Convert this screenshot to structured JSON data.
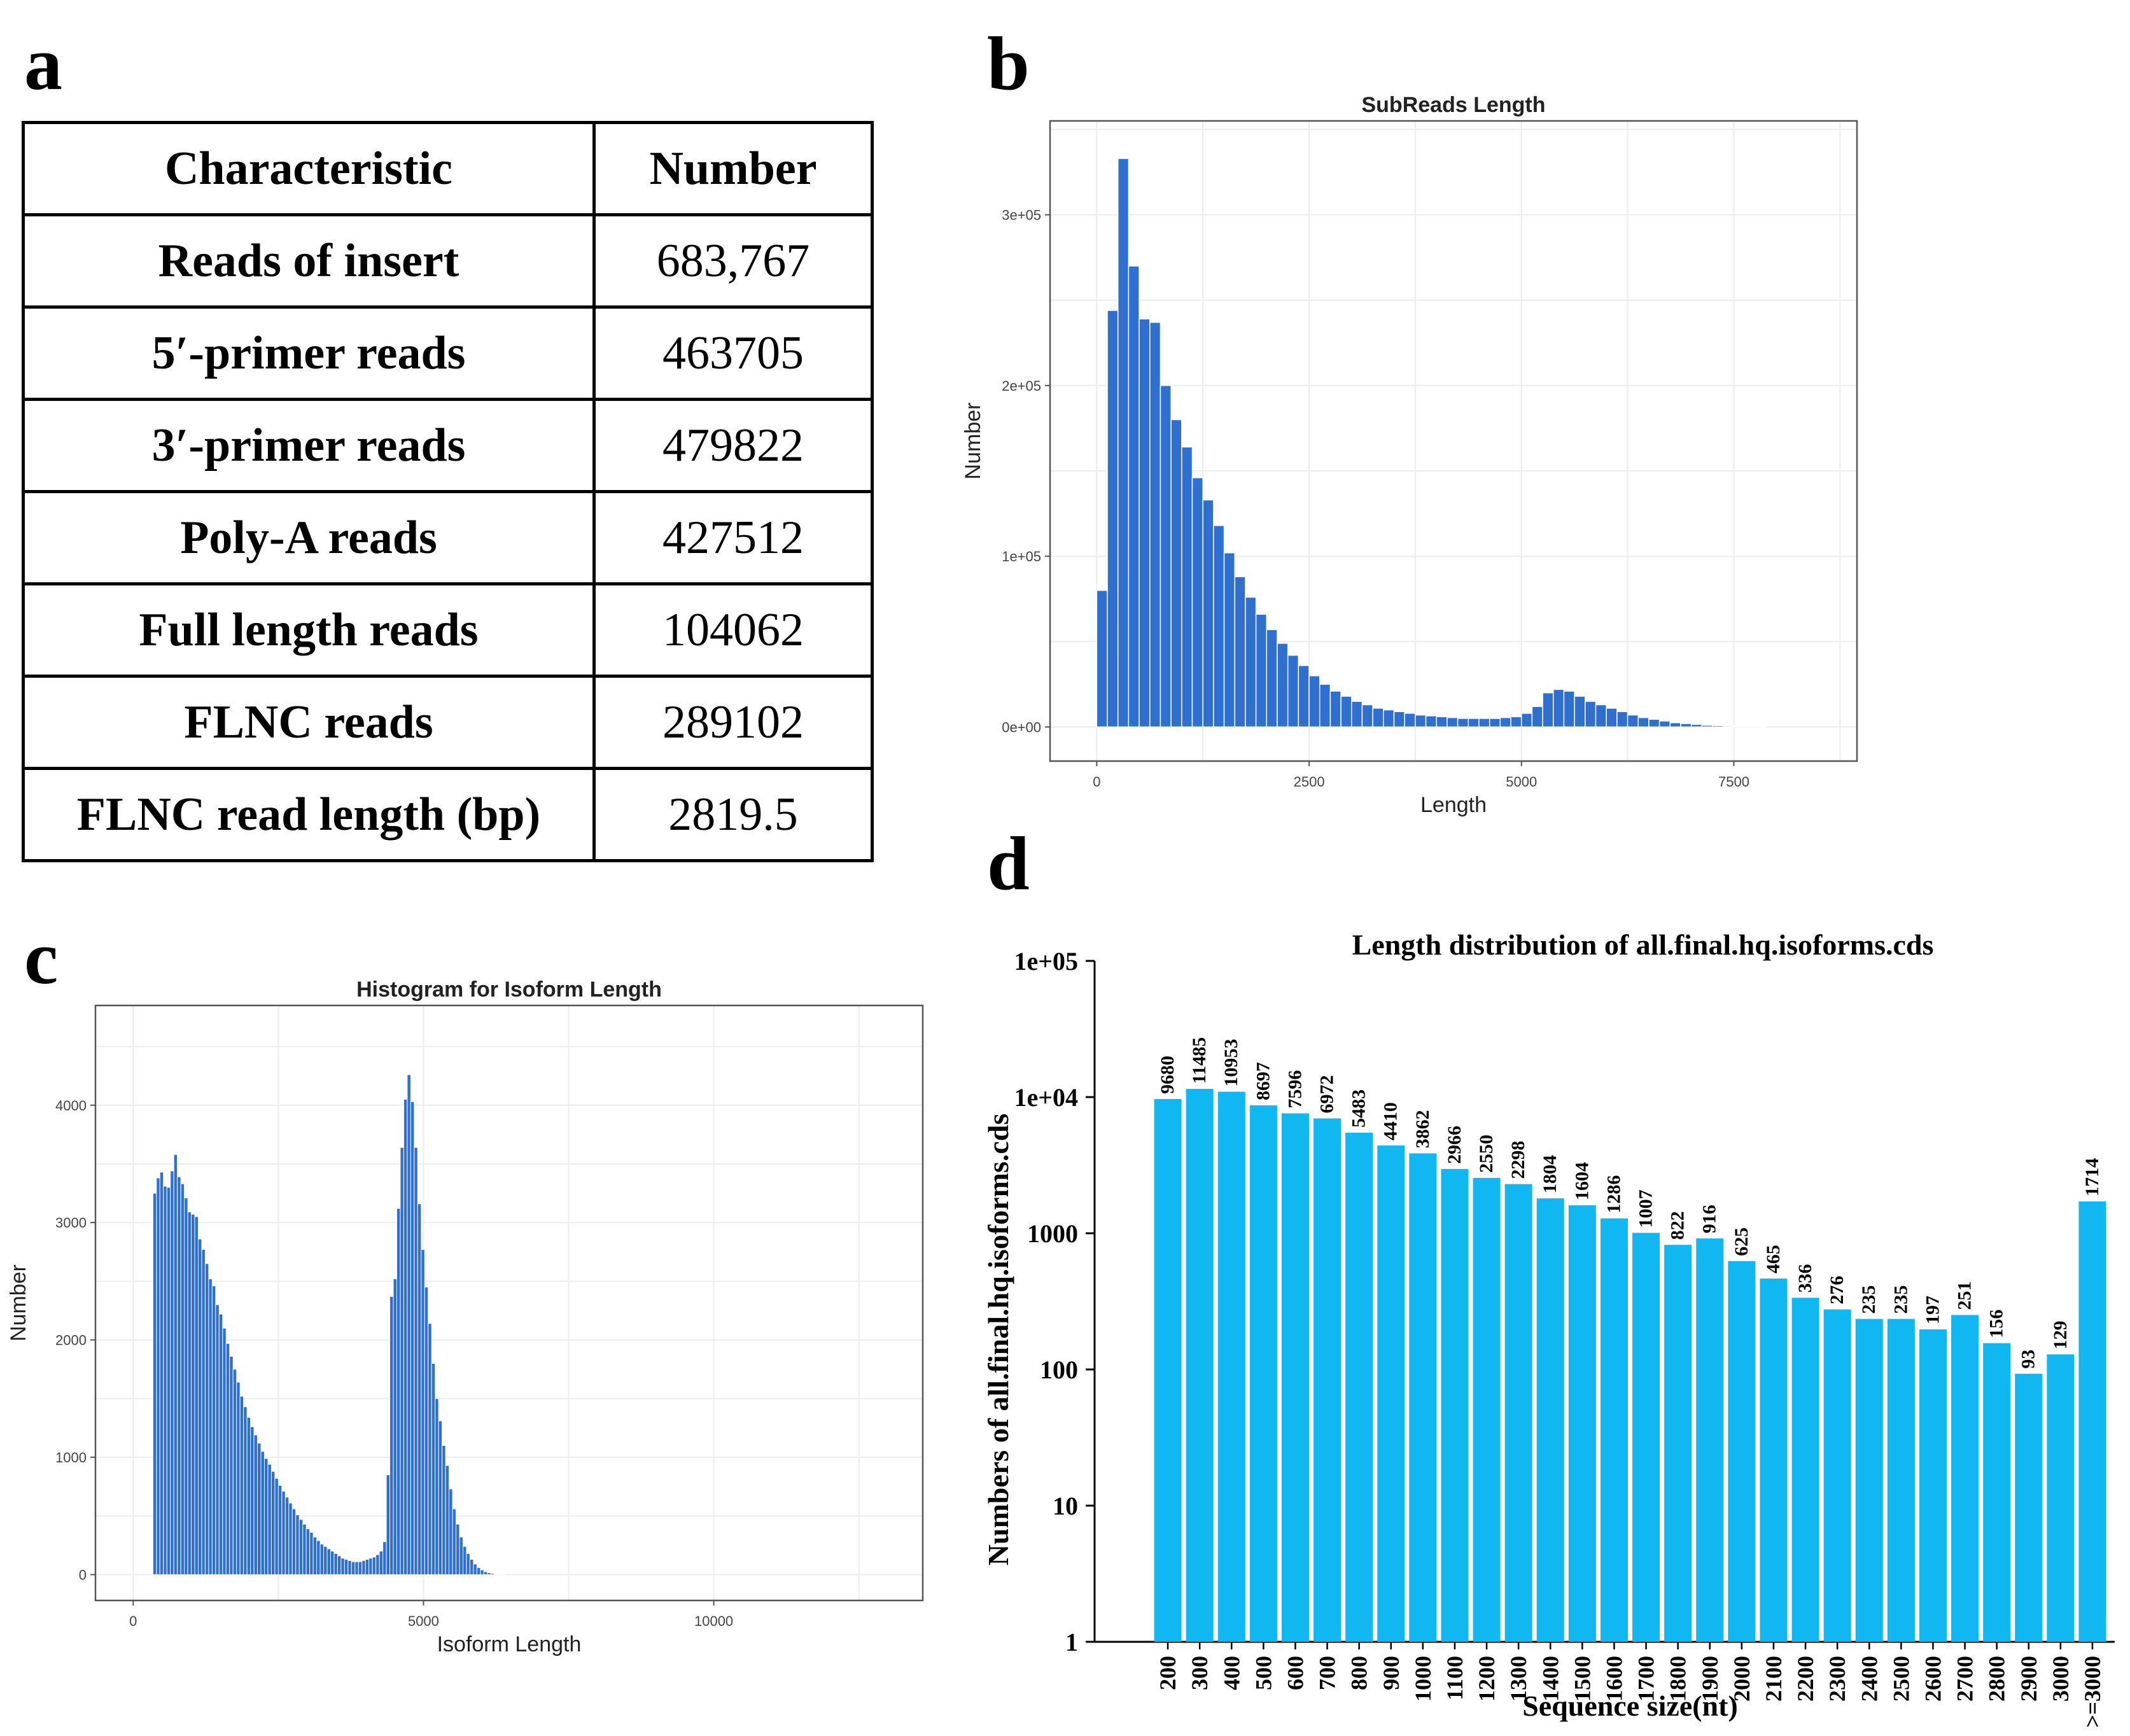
{
  "panels": {
    "a": "a",
    "b": "b",
    "c": "c",
    "d": "d"
  },
  "table": {
    "headers": [
      "Characteristic",
      "Number"
    ],
    "rows": [
      [
        "Reads of insert",
        "683,767"
      ],
      [
        "5′-primer reads",
        "463705"
      ],
      [
        "3′-primer reads",
        "479822"
      ],
      [
        "Poly-A reads",
        "427512"
      ],
      [
        "Full length reads",
        "104062"
      ],
      [
        "FLNC reads",
        "289102"
      ],
      [
        "FLNC read length (bp)",
        "2819.5"
      ]
    ]
  },
  "chart_data": [
    {
      "id": "b",
      "type": "bar",
      "title": "SubReads Length",
      "xlabel": "Length",
      "ylabel": "Number",
      "xlim": [
        -550,
        8950
      ],
      "ylim": [
        -20000,
        355000
      ],
      "xticks": [
        0,
        2500,
        5000,
        7500
      ],
      "xtick_labels": [
        "0",
        "2500",
        "5000",
        "7500"
      ],
      "yticks": [
        0,
        100000,
        200000,
        300000
      ],
      "ytick_labels": [
        "0e+00",
        "1e+05",
        "2e+05",
        "3e+05"
      ],
      "grid": true,
      "bin_width": 125,
      "x": [
        62,
        187,
        312,
        437,
        562,
        687,
        812,
        937,
        1062,
        1187,
        1312,
        1437,
        1562,
        1687,
        1812,
        1937,
        2062,
        2187,
        2312,
        2437,
        2562,
        2687,
        2812,
        2937,
        3062,
        3187,
        3312,
        3437,
        3562,
        3687,
        3812,
        3937,
        4062,
        4187,
        4312,
        4437,
        4562,
        4687,
        4812,
        4937,
        5062,
        5187,
        5312,
        5437,
        5562,
        5687,
        5812,
        5937,
        6062,
        6187,
        6312,
        6437,
        6562,
        6687,
        6812,
        6937,
        7062,
        7187,
        7312,
        7437,
        7562,
        7687,
        7812
      ],
      "values": [
        80000,
        244000,
        333000,
        270000,
        239000,
        237000,
        200000,
        180000,
        164000,
        146000,
        133000,
        118000,
        102000,
        88000,
        76000,
        66000,
        57000,
        49000,
        42000,
        36000,
        30000,
        25000,
        21000,
        18000,
        15000,
        13000,
        11000,
        10000,
        9000,
        8000,
        7000,
        6500,
        6000,
        5500,
        5000,
        5000,
        5000,
        5000,
        5500,
        6000,
        8000,
        12000,
        20000,
        22000,
        21000,
        18000,
        15000,
        13000,
        11000,
        9000,
        7000,
        5500,
        4500,
        3500,
        2500,
        2000,
        1500,
        1000,
        800,
        600,
        400,
        300,
        200
      ]
    },
    {
      "id": "c",
      "type": "bar",
      "title": "Histogram for Isoform Length",
      "xlabel": "Isoform Length",
      "ylabel": "Number",
      "xlim": [
        -650,
        13600
      ],
      "ylim": [
        -220,
        4850
      ],
      "xticks": [
        0,
        5000,
        10000
      ],
      "xtick_labels": [
        "0",
        "5000",
        "10000"
      ],
      "yticks": [
        0,
        1000,
        2000,
        3000,
        4000
      ],
      "ytick_labels": [
        "0",
        "1000",
        "2000",
        "3000",
        "4000"
      ],
      "grid": true,
      "bin_width": 60,
      "x": [
        370,
        430,
        490,
        550,
        610,
        670,
        730,
        790,
        850,
        910,
        970,
        1030,
        1090,
        1150,
        1210,
        1270,
        1330,
        1390,
        1450,
        1510,
        1570,
        1630,
        1690,
        1750,
        1810,
        1870,
        1930,
        1990,
        2050,
        2110,
        2170,
        2230,
        2290,
        2350,
        2410,
        2470,
        2530,
        2590,
        2650,
        2710,
        2770,
        2830,
        2890,
        2950,
        3010,
        3070,
        3130,
        3190,
        3250,
        3310,
        3370,
        3430,
        3490,
        3550,
        3610,
        3670,
        3730,
        3790,
        3850,
        3910,
        3970,
        4030,
        4090,
        4150,
        4210,
        4270,
        4330,
        4390,
        4450,
        4510,
        4570,
        4630,
        4690,
        4750,
        4810,
        4870,
        4930,
        4990,
        5050,
        5110,
        5170,
        5230,
        5290,
        5350,
        5410,
        5470,
        5530,
        5590,
        5650,
        5710,
        5770,
        5830,
        5890,
        5950,
        6010,
        6070,
        6130,
        6190,
        6250,
        6310,
        6370,
        6430,
        6490,
        6550,
        6610,
        6670,
        6730,
        6790,
        6850,
        6910,
        6970,
        7030,
        7090,
        7150,
        7210,
        7270,
        7330,
        7390,
        7450,
        7510,
        7570,
        7630,
        7690
      ],
      "values": [
        3250,
        3380,
        3430,
        3310,
        3300,
        3440,
        3580,
        3390,
        3330,
        3210,
        3090,
        3070,
        3050,
        2860,
        2770,
        2650,
        2520,
        2460,
        2300,
        2220,
        2100,
        1970,
        1860,
        1750,
        1640,
        1520,
        1430,
        1340,
        1260,
        1190,
        1120,
        1050,
        990,
        940,
        880,
        820,
        760,
        710,
        660,
        610,
        560,
        510,
        470,
        430,
        390,
        360,
        320,
        290,
        260,
        240,
        220,
        200,
        180,
        160,
        140,
        130,
        120,
        110,
        110,
        110,
        120,
        130,
        140,
        150,
        170,
        200,
        280,
        850,
        2370,
        2520,
        3120,
        3640,
        4050,
        4260,
        4030,
        3640,
        3160,
        2770,
        2450,
        2140,
        1800,
        1500,
        1310,
        1100,
        930,
        730,
        560,
        430,
        320,
        240,
        180,
        130,
        90,
        60,
        40,
        25,
        15,
        10,
        5,
        2,
        1,
        0,
        0,
        0,
        0,
        0,
        0,
        0,
        0,
        0,
        0,
        0,
        0,
        0,
        0,
        0,
        0,
        0,
        0,
        0,
        0,
        0,
        0
      ]
    },
    {
      "id": "d",
      "type": "bar",
      "scale": "log",
      "title": "Length distribution of all.final.hq.isoforms.cds",
      "xlabel": "Sequence size(nt)",
      "ylabel": "Numbers of all.final.hq.isoforms.cds",
      "ylim": [
        1,
        100000
      ],
      "yticks": [
        1,
        10,
        100,
        1000,
        10000,
        100000
      ],
      "ytick_labels": [
        "1",
        "10",
        "100",
        "1000",
        "1e+04",
        "1e+05"
      ],
      "categories": [
        "200",
        "300",
        "400",
        "500",
        "600",
        "700",
        "800",
        "900",
        "1000",
        "1100",
        "1200",
        "1300",
        "1400",
        "1500",
        "1600",
        "1700",
        "1800",
        "1900",
        "2000",
        "2100",
        "2200",
        "2300",
        "2400",
        "2500",
        "2600",
        "2700",
        "2800",
        "2900",
        "3000",
        ">=3000"
      ],
      "values": [
        9680,
        11485,
        10953,
        8697,
        7596,
        6972,
        5483,
        4410,
        3862,
        2966,
        2550,
        2298,
        1804,
        1604,
        1286,
        1007,
        822,
        916,
        625,
        465,
        336,
        276,
        235,
        235,
        197,
        251,
        156,
        93,
        129,
        1714
      ],
      "data_labels": [
        "9680",
        "11485",
        "10953",
        "8697",
        "7596",
        "6972",
        "5483",
        "4410",
        "3862",
        "2966",
        "2550",
        "2298",
        "1804",
        "1604",
        "1286",
        "1007",
        "822",
        "916",
        "625",
        "465",
        "336",
        "276",
        "235",
        "235",
        "197",
        "251",
        "156",
        "93",
        "129",
        "1714"
      ]
    }
  ]
}
